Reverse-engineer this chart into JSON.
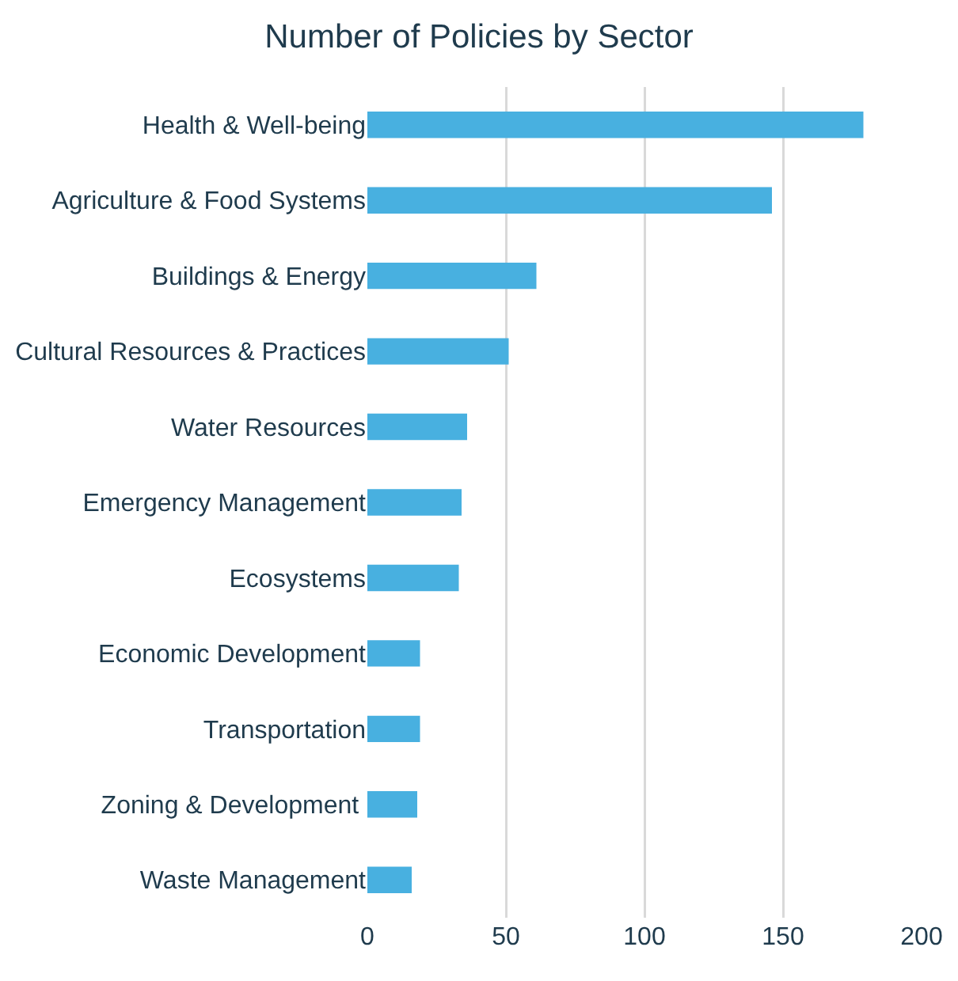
{
  "chart_data": {
    "type": "bar",
    "orientation": "horizontal",
    "title": "Number of Policies by Sector",
    "categories": [
      "Health & Well-being",
      "Agriculture & Food Systems",
      "Buildings & Energy",
      "Cultural Resources & Practices",
      "Water Resources",
      "Emergency Management",
      "Ecosystems",
      "Economic Development",
      "Transportation",
      "Zoning & Development ",
      "Waste Management"
    ],
    "values": [
      179,
      146,
      61,
      51,
      36,
      34,
      33,
      19,
      19,
      18,
      16
    ],
    "color": "#48b0e0",
    "xlim": [
      0,
      200
    ],
    "xticks": [
      0,
      50,
      100,
      150,
      200
    ],
    "grid": "x",
    "legend": false
  }
}
